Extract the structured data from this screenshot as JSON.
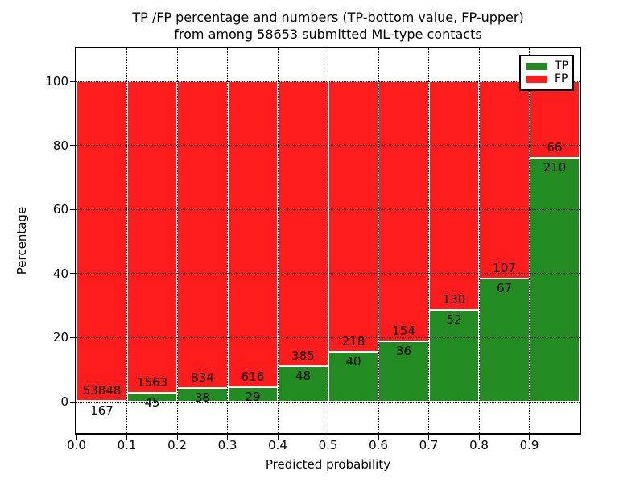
{
  "figure": {
    "title_line1": "TP /FP percentage and numbers (TP-bottom value, FP-upper)",
    "title_line2": "from among 58653 submitted ML-type contacts",
    "xlabel": "Predicted probability",
    "ylabel": "Percentage"
  },
  "legend": {
    "position": "upper-right",
    "items": [
      {
        "label": "TP",
        "color": "#228b22"
      },
      {
        "label": "FP",
        "color": "#ff1c1c"
      }
    ]
  },
  "chart_data": {
    "type": "bar",
    "stacked": true,
    "normalized": "percent-of-bin-total",
    "title": "TP /FP percentage and numbers (TP-bottom value, FP-upper) from among 58653 submitted ML-type contacts",
    "xlabel": "Predicted probability",
    "ylabel": "Percentage",
    "total_submitted": 58653,
    "bins": [
      "0.0-0.1",
      "0.1-0.2",
      "0.2-0.3",
      "0.3-0.4",
      "0.4-0.5",
      "0.5-0.6",
      "0.6-0.7",
      "0.7-0.8",
      "0.8-0.9",
      "0.9-1.0"
    ],
    "x_tick_labels": [
      "0.0",
      "0.1",
      "0.2",
      "0.3",
      "0.4",
      "0.5",
      "0.6",
      "0.7",
      "0.8",
      "0.9"
    ],
    "y_tick_values": [
      0,
      20,
      40,
      60,
      80,
      100
    ],
    "y_tick_labels": [
      "0",
      "20",
      "40",
      "60",
      "80",
      "100"
    ],
    "xlim": [
      0.0,
      1.0
    ],
    "ylim": [
      -10,
      110
    ],
    "grid": "dotted-black",
    "bar_edge_color": "#ffffff",
    "legend_position": "upper right",
    "series": [
      {
        "name": "TP",
        "color": "#228b22",
        "counts": [
          167,
          45,
          38,
          29,
          48,
          40,
          36,
          52,
          67,
          210
        ],
        "percent": [
          0.31,
          2.8,
          4.36,
          4.5,
          11.09,
          15.5,
          18.95,
          28.57,
          38.51,
          76.09
        ]
      },
      {
        "name": "FP",
        "color": "#ff1c1c",
        "counts": [
          53848,
          1563,
          834,
          616,
          385,
          218,
          154,
          130,
          107,
          66
        ],
        "percent": [
          99.69,
          97.2,
          95.64,
          95.5,
          88.91,
          84.5,
          81.05,
          71.43,
          61.49,
          23.91
        ]
      }
    ]
  }
}
